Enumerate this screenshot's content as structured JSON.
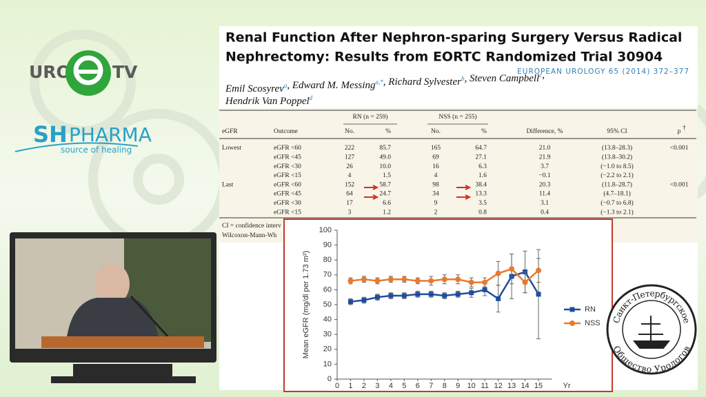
{
  "logos": {
    "uro_left": "URO",
    "uro_right": "TV",
    "pharma_left": "SH",
    "pharma_right": "PHARMA",
    "pharma_tagline": "source of healing",
    "society_top": "Санкт-Петербургское",
    "society_bottom": "Общество Урологов"
  },
  "slide": {
    "title_lines": [
      "Renal Function After Nephron-sparing Surgery Versus Radical",
      "Nephrectomy: Results from EORTC Randomized Trial 30904"
    ],
    "journal": "EUROPEAN UROLOGY 65 (2014) 372–377",
    "author_lines": [
      [
        {
          "name": "Emil Scosyrev",
          "sup": "a"
        },
        {
          "name": ", Edward M. Messing",
          "sup": "a,*"
        },
        {
          "name": ", Richard Sylvester",
          "sup": "b"
        },
        {
          "name": ", Steven Campbell",
          "sup": "c"
        },
        {
          "name": ","
        }
      ],
      [
        {
          "name": "Hendrik Van Poppel",
          "sup": "d"
        }
      ]
    ]
  },
  "table": {
    "group_headers": [
      "RN (n = 259)",
      "NSS (n = 255)"
    ],
    "headers": [
      "eGFR",
      "Outcome",
      "No.",
      "%",
      "No.",
      "%",
      "Difference, %",
      "95% CI",
      "p"
    ],
    "header_mark": "†",
    "groups": [
      {
        "label": "Lowest",
        "p": "<0.001",
        "rows": [
          [
            "eGFR <60",
            "222",
            "85.7",
            "165",
            "64.7",
            "21.0",
            "(13.8–28.3)"
          ],
          [
            "eGFR <45",
            "127",
            "49.0",
            "69",
            "27.1",
            "21.9",
            "(13.8–30.2)"
          ],
          [
            "eGFR <30",
            "26",
            "10.0",
            "16",
            "6.3",
            "3.7",
            "(−1.0 to 8.5)"
          ],
          [
            "eGFR <15",
            "4",
            "1.5",
            "4",
            "1.6",
            "−0.1",
            "(−2.2 to 2.1)"
          ]
        ]
      },
      {
        "label": "Last",
        "p": "<0.001",
        "rows": [
          [
            "eGFR <60",
            "152",
            "58.7",
            "98",
            "38.4",
            "20.3",
            "(11.8–28.7)"
          ],
          [
            "eGFR <45",
            "64",
            "24.7",
            "34",
            "13.3",
            "11.4",
            "(4.7–18.1)"
          ],
          [
            "eGFR <30",
            "17",
            "6.6",
            "9",
            "3.5",
            "3.1",
            "(−0.7 to 6.8)"
          ],
          [
            "eGFR <15",
            "3",
            "1.2",
            "2",
            "0.8",
            "0.4",
            "(−1.3 to 2.1)"
          ]
        ]
      }
    ],
    "footnotes": [
      "CI = confidence interv",
      "Wilcoxon-Mann-Wh"
    ]
  },
  "chart_data": {
    "type": "line",
    "y_label": "Mean eGFR (mg/dl per 1.73 m²)",
    "x_label": "Yr",
    "x": [
      1,
      2,
      3,
      4,
      5,
      6,
      7,
      8,
      9,
      10,
      11,
      12,
      13,
      14,
      15
    ],
    "series": [
      {
        "name": "RN",
        "color": "#1f4e9c",
        "values": [
          52,
          53,
          55,
          56,
          56,
          57,
          57,
          56,
          57,
          58,
          60,
          54,
          69,
          72,
          57
        ],
        "errors": [
          2,
          2,
          2,
          2,
          2,
          2,
          2,
          2,
          2,
          3,
          4,
          9,
          15,
          14,
          30
        ]
      },
      {
        "name": "NSS",
        "color": "#e87a2f",
        "values": [
          66,
          67,
          66,
          67,
          67,
          66,
          66,
          67,
          67,
          65,
          65,
          71,
          74,
          65,
          73
        ],
        "errors": [
          2,
          2,
          2,
          2,
          2,
          2,
          3,
          3,
          3,
          3,
          3,
          8,
          10,
          7,
          8
        ]
      }
    ],
    "xlim": [
      0,
      16
    ],
    "xticks": [
      0,
      1,
      2,
      3,
      4,
      5,
      6,
      7,
      8,
      9,
      10,
      11,
      12,
      13,
      14,
      15
    ],
    "ylim": [
      0,
      100
    ],
    "yticks": [
      0,
      10,
      20,
      30,
      40,
      50,
      60,
      70,
      80,
      90,
      100
    ]
  }
}
